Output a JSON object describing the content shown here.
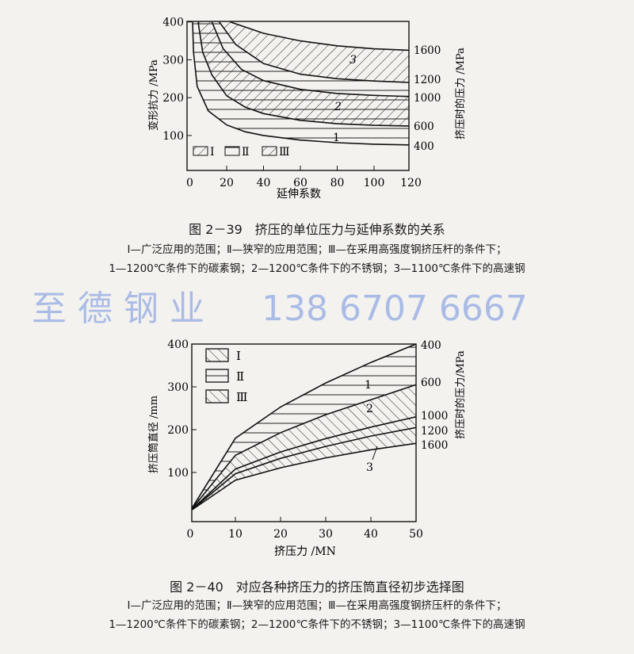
{
  "watermark": {
    "line1": "至 德 钢 业",
    "line2": "138 6707 6667",
    "color": "#6f8fe0"
  },
  "figure1": {
    "caption": "图 2－39　挤压的单位压力与延伸系数的关系",
    "note1": "Ⅰ—广泛应用的范围；Ⅱ—狭窄的应用范围；Ⅲ—在采用高强度钢挤压杆的条件下；",
    "note2": "1—1200℃条件下的碳素钢；2—1200℃条件下的不锈钢；3—1100℃条件下的高速钢"
  },
  "figure2": {
    "caption": "图 2－40　对应各种挤压力的挤压筒直径初步选择图",
    "note1": "Ⅰ—广泛应用的范围；Ⅱ—狭窄的应用范围；Ⅲ—在采用高强度钢挤压杆的条件下；",
    "note2": "1—1200℃条件下的碳素钢；2—1200℃条件下的不锈钢；3—1100℃条件下的高速钢"
  },
  "chart_data": [
    {
      "type": "line",
      "xlabel": "延伸系数",
      "ylabel": "变形抗力 /MPa",
      "y2label": "挤压时的压力 /MPa",
      "xlim": [
        0,
        120
      ],
      "ylim": [
        0,
        400
      ],
      "xticks": [
        "0",
        "20",
        "40",
        "60",
        "80",
        "100",
        "120"
      ],
      "yticks": [
        "100",
        "200",
        "300",
        "400"
      ],
      "legend": [
        "Ⅰ",
        "Ⅱ",
        "Ⅲ"
      ],
      "legend_placement": "bottom-left",
      "curve_labels": [
        "1",
        "2",
        "3"
      ],
      "series": [
        {
          "name": "400",
          "points": [
            [
              1.5,
              400
            ],
            [
              2,
              320
            ],
            [
              4,
              230
            ],
            [
              10,
              165
            ],
            [
              20,
              128
            ],
            [
              30,
              110
            ],
            [
              40,
              100
            ],
            [
              60,
              88
            ],
            [
              80,
              81
            ],
            [
              100,
              77
            ],
            [
              120,
              75
            ]
          ]
        },
        {
          "name": "600",
          "points": [
            [
              4.5,
              400
            ],
            [
              7,
              320
            ],
            [
              12,
              260
            ],
            [
              20,
              205
            ],
            [
              30,
              175
            ],
            [
              40,
              158
            ],
            [
              60,
              140
            ],
            [
              80,
              131
            ],
            [
              100,
              127
            ],
            [
              120,
              125
            ]
          ]
        },
        {
          "name": "1000",
          "points": [
            [
              12,
              400
            ],
            [
              18,
              330
            ],
            [
              28,
              275
            ],
            [
              40,
              245
            ],
            [
              60,
              222
            ],
            [
              80,
              211
            ],
            [
              100,
              206
            ],
            [
              120,
              203
            ]
          ]
        },
        {
          "name": "1200",
          "points": [
            [
              16,
              400
            ],
            [
              25,
              340
            ],
            [
              40,
              290
            ],
            [
              60,
              262
            ],
            [
              80,
              250
            ],
            [
              100,
              244
            ],
            [
              120,
              240
            ]
          ]
        },
        {
          "name": "1600",
          "points": [
            [
              22,
              400
            ],
            [
              40,
              370
            ],
            [
              60,
              350
            ],
            [
              80,
              337
            ],
            [
              100,
              329
            ],
            [
              120,
              325
            ]
          ]
        }
      ]
    },
    {
      "type": "line",
      "xlabel": "挤压力 /MN",
      "ylabel": "挤压筒直径 /mm",
      "y2label": "挤压时的压力/MPa",
      "xlim": [
        0,
        50
      ],
      "ylim": [
        0,
        400
      ],
      "xticks": [
        "0",
        "10",
        "20",
        "30",
        "40",
        "50"
      ],
      "yticks": [
        "100",
        "200",
        "300",
        "400"
      ],
      "legend": [
        "Ⅰ",
        "Ⅱ",
        "Ⅲ"
      ],
      "legend_placement": "top-left",
      "curve_labels": [
        "1",
        "2",
        "3"
      ],
      "series": [
        {
          "name": "400",
          "x": [
            0,
            10,
            20,
            30,
            40,
            50
          ],
          "y": [
            10,
            180,
            253,
            309,
            357,
            400
          ]
        },
        {
          "name": "600",
          "x": [
            0,
            10,
            20,
            30,
            40,
            50
          ],
          "y": [
            10,
            140,
            193,
            235,
            270,
            305
          ]
        },
        {
          "name": "1000",
          "x": [
            0,
            10,
            20,
            30,
            40,
            50
          ],
          "y": [
            10,
            108,
            148,
            179,
            206,
            230
          ]
        },
        {
          "name": "1200",
          "x": [
            0,
            10,
            20,
            30,
            40,
            50
          ],
          "y": [
            10,
            97,
            133,
            161,
            185,
            205
          ]
        },
        {
          "name": "1600",
          "x": [
            0,
            10,
            20,
            30,
            40,
            50
          ],
          "y": [
            10,
            82,
            111,
            134,
            153,
            168
          ]
        }
      ]
    }
  ]
}
